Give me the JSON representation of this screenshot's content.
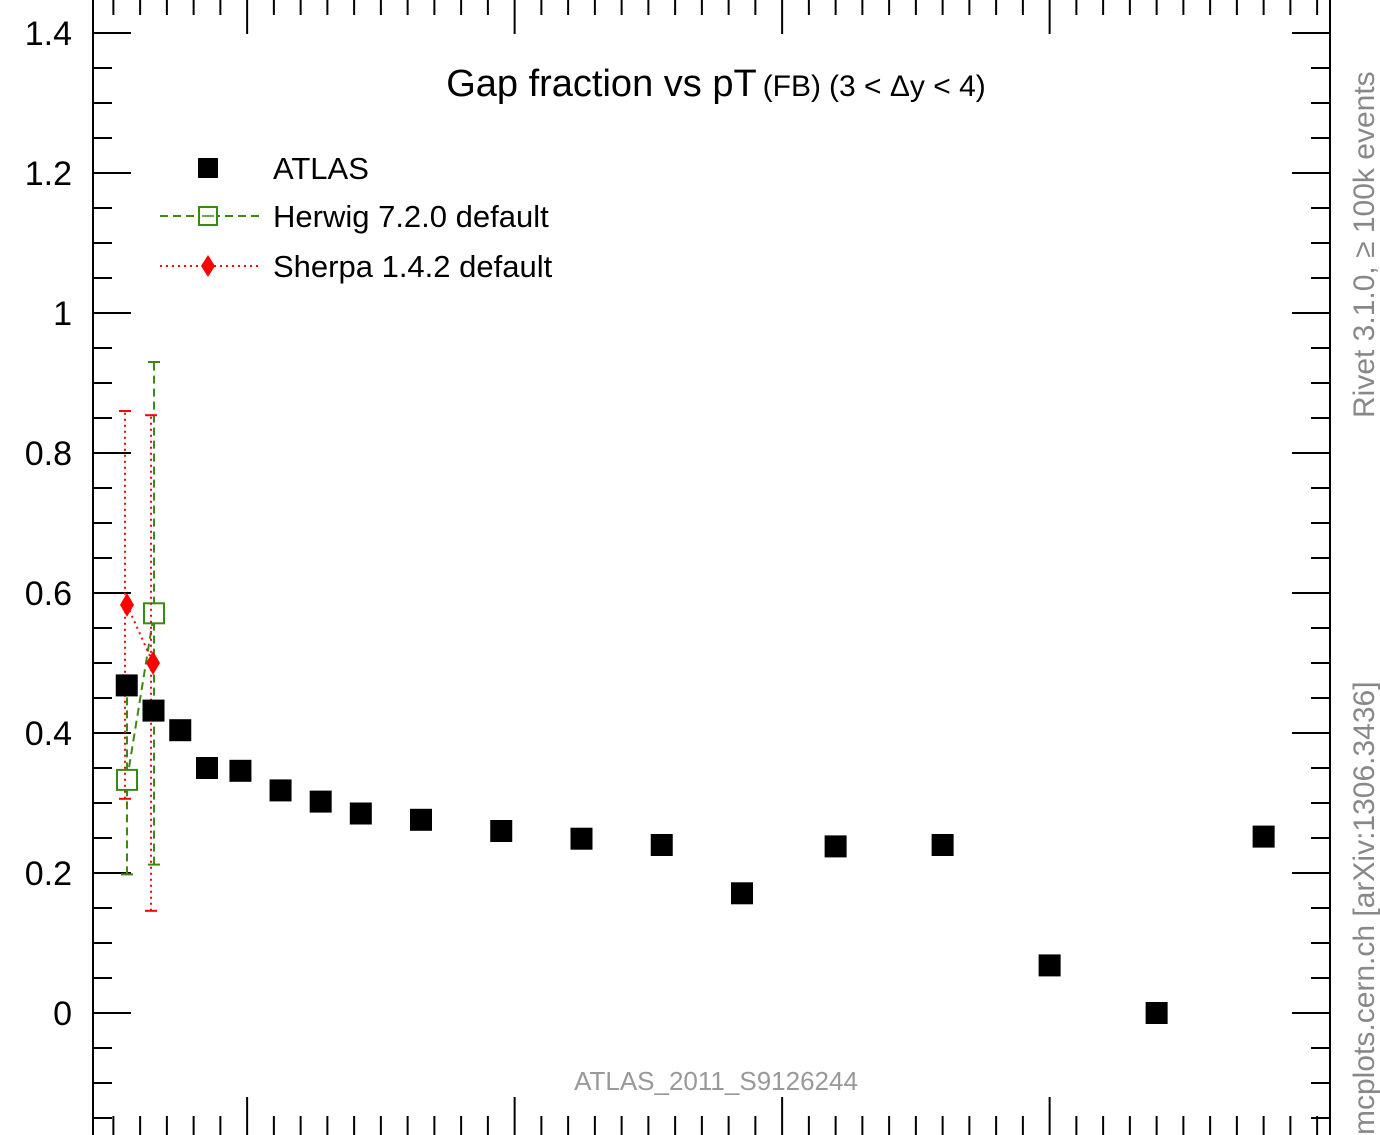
{
  "chart_data": {
    "type": "scatter",
    "title_main": "Gap fraction vs pT",
    "title_sub": "(FB)",
    "title_range": "(3 < Δy < 4)",
    "xlabel": "",
    "ylabel": "",
    "ylim": [
      -0.18,
      1.44
    ],
    "yticks": [
      0,
      0.2,
      0.4,
      0.6,
      0.8,
      1,
      1.2,
      1.4
    ],
    "ytick_labels": [
      "0",
      "0.2",
      "0.4",
      "0.6",
      "0.8",
      "1",
      "1.2",
      "1.4"
    ],
    "grid": false,
    "legend_position": "top-left",
    "series": [
      {
        "name": "ATLAS",
        "color": "#000000",
        "marker": "filled-square",
        "points": [
          {
            "x": 1,
            "y": 0.468
          },
          {
            "x": 2,
            "y": 0.432
          },
          {
            "x": 3,
            "y": 0.404
          },
          {
            "x": 4,
            "y": 0.35
          },
          {
            "x": 5.25,
            "y": 0.346
          },
          {
            "x": 6.75,
            "y": 0.318
          },
          {
            "x": 8.25,
            "y": 0.302
          },
          {
            "x": 9.75,
            "y": 0.285
          },
          {
            "x": 12,
            "y": 0.276
          },
          {
            "x": 15,
            "y": 0.26
          },
          {
            "x": 18,
            "y": 0.249
          },
          {
            "x": 21,
            "y": 0.24
          },
          {
            "x": 24,
            "y": 0.171
          },
          {
            "x": 27.5,
            "y": 0.238
          },
          {
            "x": 31.5,
            "y": 0.24
          },
          {
            "x": 35.5,
            "y": 0.068
          },
          {
            "x": 39.5,
            "y": 0.0
          },
          {
            "x": 43.5,
            "y": 0.252
          }
        ]
      },
      {
        "name": "Herwig 7.2.0 default",
        "color": "#3a8a10",
        "marker": "open-square",
        "line": "dashed",
        "points": [
          {
            "x": 1,
            "y": 0.333,
            "ylo": 0.198,
            "yhi": 0.468
          },
          {
            "x": 2,
            "y": 0.571,
            "ylo": 0.212,
            "yhi": 0.93
          }
        ]
      },
      {
        "name": "Sherpa 1.4.2 default",
        "color": "#ff0000",
        "marker": "diamond",
        "line": "dotted",
        "points": [
          {
            "x": 1,
            "y": 0.583,
            "ylo": 0.306,
            "yhi": 0.86
          },
          {
            "x": 2,
            "y": 0.5,
            "ylo": 0.146,
            "yhi": 0.854
          }
        ]
      }
    ],
    "annotations": {
      "analysis": "ATLAS_2011_S9126244",
      "side_top": "Rivet 3.1.0, ≥ 100k events",
      "side_bottom": "mcplots.cern.ch [arXiv:1306.3436]"
    }
  }
}
